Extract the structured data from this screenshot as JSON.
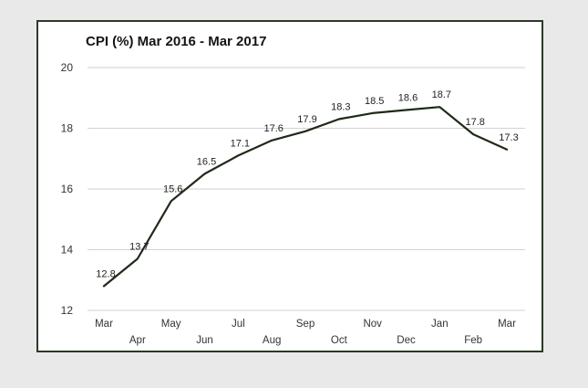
{
  "chart_data": {
    "type": "line",
    "title": "CPI (%) Mar 2016 - Mar 2017",
    "xlabel": "",
    "ylabel": "",
    "categories": [
      "Mar",
      "Apr",
      "May",
      "Jun",
      "Jul",
      "Aug",
      "Sep",
      "Oct",
      "Nov",
      "Dec",
      "Jan",
      "Feb",
      "Mar"
    ],
    "series": [
      {
        "values": [
          12.8,
          13.7,
          15.6,
          16.5,
          17.1,
          17.6,
          17.9,
          18.3,
          18.5,
          18.6,
          18.7,
          17.8,
          17.3
        ]
      }
    ],
    "data_labels": [
      "12.8",
      "13.7",
      "15.6",
      "16.5",
      "17.1",
      "17.6",
      "17.9",
      "18.3",
      "18.5",
      "18.6",
      "18.7",
      "17.8",
      "17.3"
    ],
    "yticks": [
      "12",
      "14",
      "16",
      "18",
      "20"
    ],
    "ylim": [
      12,
      20
    ],
    "grid": "horizontal",
    "legend": "none",
    "colors": {
      "line": "#1f2a19",
      "frame": "#2b3a26",
      "grid": "#d2d2d2",
      "background": "#e9e9e9"
    }
  }
}
